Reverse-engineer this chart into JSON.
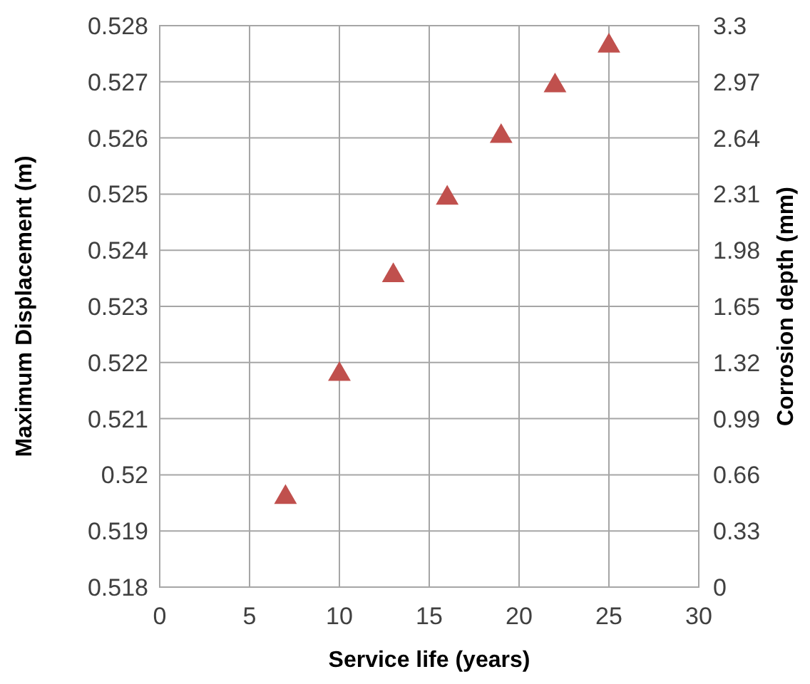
{
  "chart_data": {
    "type": "scatter",
    "xlabel": "Service life (years)",
    "ylabel": "Maximum Displacement (m)",
    "y2label": "Corrosion depth (mm)",
    "x": [
      7,
      10,
      13,
      16,
      19,
      22,
      25
    ],
    "series": [
      {
        "color": "#c0504d",
        "values": [
          0.51965,
          0.52184,
          0.5236,
          0.52498,
          0.52608,
          0.52698,
          0.52769
        ]
      }
    ],
    "marker": "triangle",
    "grid": true,
    "xlim": [
      0,
      30
    ],
    "xticks": [
      0,
      5,
      10,
      15,
      20,
      25,
      30
    ],
    "ylim": [
      0.518,
      0.528
    ],
    "yticks": [
      0.518,
      0.519,
      0.52,
      0.521,
      0.522,
      0.523,
      0.524,
      0.525,
      0.526,
      0.527,
      0.528
    ],
    "y2lim": [
      0,
      3.3
    ],
    "y2ticks": [
      0,
      0.33,
      0.66,
      0.99,
      1.32,
      1.65,
      1.98,
      2.31,
      2.64,
      2.97,
      3.3
    ]
  }
}
